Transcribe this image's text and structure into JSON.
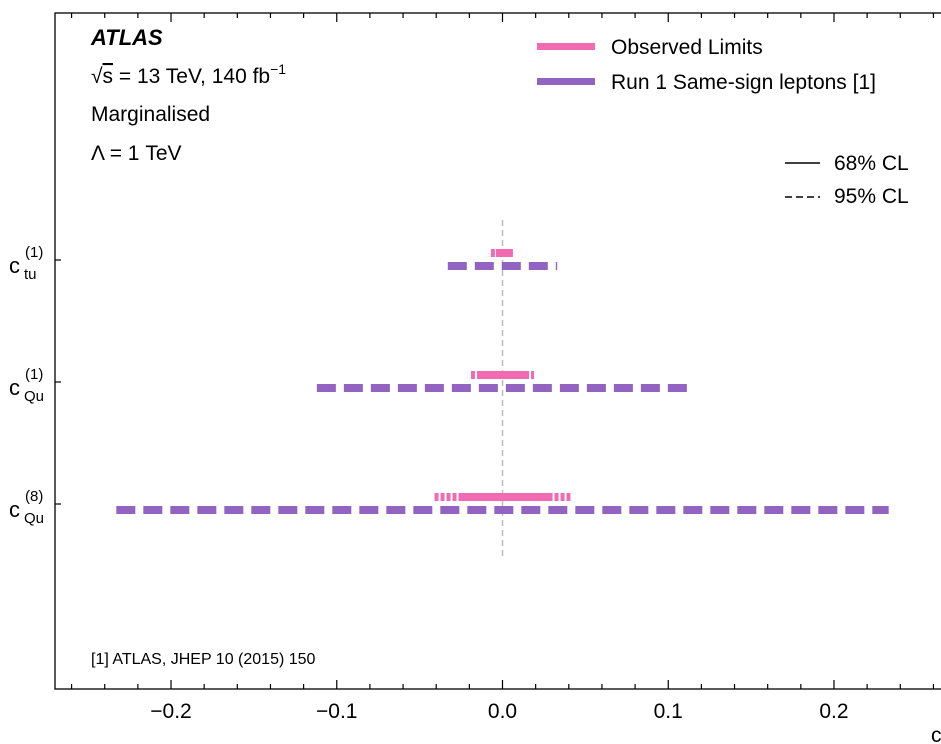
{
  "chart_data": {
    "type": "interval",
    "x": {
      "lim": [
        -0.27,
        0.27
      ],
      "ticks": [
        -0.2,
        -0.1,
        0.0,
        0.1,
        0.2
      ],
      "tick_labels": [
        "−0.2",
        "−0.1",
        "0.0",
        "0.1",
        "0.2"
      ],
      "xlabel": "c"
    },
    "categories": [
      {
        "main": "c",
        "sub": "tu",
        "sup": "(1)"
      },
      {
        "main": "c",
        "sub": "Qu",
        "sup": "(1)"
      },
      {
        "main": "c",
        "sub": "Qu",
        "sup": "(8)"
      }
    ],
    "reference_line_x": 0.0,
    "series": [
      {
        "name": "Observed Limits",
        "color": "#f26bb2",
        "intervals": [
          {
            "cl68": [
              -0.004,
              0.004
            ],
            "cl95": [
              -0.007,
              0.007
            ]
          },
          {
            "cl68": [
              -0.015,
              0.016
            ],
            "cl95": [
              -0.019,
              0.019
            ]
          },
          {
            "cl68": [
              -0.025,
              0.03
            ],
            "cl95": [
              -0.041,
              0.041
            ]
          }
        ]
      },
      {
        "name": "Run 1 Same-sign leptons [1]",
        "color": "#9263c0",
        "intervals": [
          {
            "cl95": [
              -0.033,
              0.033
            ]
          },
          {
            "cl95": [
              -0.112,
              0.112
            ]
          },
          {
            "cl95": [
              -0.233,
              0.233
            ]
          }
        ]
      }
    ],
    "cl_legend": [
      {
        "style": "solid",
        "label": "68% CL"
      },
      {
        "style": "dashed",
        "label": "95% CL"
      }
    ],
    "legend_position": "top-right"
  },
  "annotations": {
    "experiment": "ATLAS",
    "energy_prefix": "√s = 13 TeV, 140 fb",
    "energy_sup": "−1",
    "sqrt": "√",
    "sqrt_arg": "s",
    "energy_rest": " = 13 TeV, 140 fb",
    "mode": "Marginalised",
    "scale": "Λ = 1 TeV",
    "footnote": "[1] ATLAS, JHEP 10 (2015) 150"
  }
}
